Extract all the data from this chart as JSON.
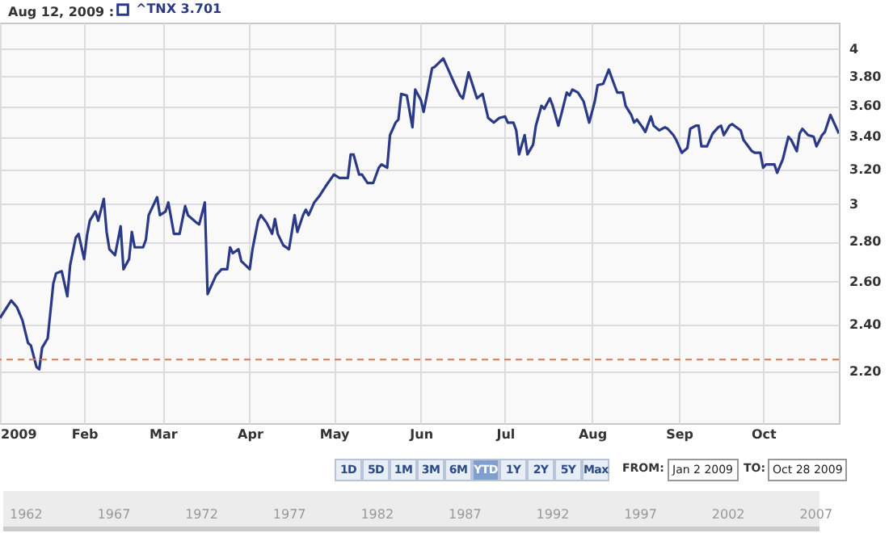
{
  "chart_data": {
    "type": "line",
    "title": "Aug 12, 2009 :",
    "x": [
      "2009-01-02",
      "2009-01-06",
      "2009-01-08",
      "2009-01-10",
      "2009-01-12",
      "2009-01-13",
      "2009-01-15",
      "2009-01-16",
      "2009-01-17",
      "2009-01-19",
      "2009-01-21",
      "2009-01-22",
      "2009-01-24",
      "2009-01-26",
      "2009-01-27",
      "2009-01-29",
      "2009-01-30",
      "2009-02-01",
      "2009-02-02",
      "2009-02-03",
      "2009-02-05",
      "2009-02-06",
      "2009-02-08",
      "2009-02-09",
      "2009-02-10",
      "2009-02-12",
      "2009-02-14",
      "2009-02-15",
      "2009-02-17",
      "2009-02-18",
      "2009-02-19",
      "2009-02-22",
      "2009-02-23",
      "2009-02-24",
      "2009-02-27",
      "2009-02-28",
      "2009-03-02",
      "2009-03-03",
      "2009-03-05",
      "2009-03-07",
      "2009-03-09",
      "2009-03-10",
      "2009-03-13",
      "2009-03-14",
      "2009-03-16",
      "2009-03-17",
      "2009-03-20",
      "2009-03-22",
      "2009-03-24",
      "2009-03-25",
      "2009-03-26",
      "2009-03-28",
      "2009-03-29",
      "2009-04-01",
      "2009-04-02",
      "2009-04-04",
      "2009-04-05",
      "2009-04-07",
      "2009-04-09",
      "2009-04-10",
      "2009-04-11",
      "2009-04-13",
      "2009-04-15",
      "2009-04-17",
      "2009-04-18",
      "2009-04-20",
      "2009-04-21",
      "2009-04-22",
      "2009-04-24",
      "2009-04-26",
      "2009-04-28",
      "2009-05-01",
      "2009-05-03",
      "2009-05-06",
      "2009-05-07",
      "2009-05-08",
      "2009-05-10",
      "2009-05-11",
      "2009-05-13",
      "2009-05-15",
      "2009-05-17",
      "2009-05-18",
      "2009-05-20",
      "2009-05-21",
      "2009-05-23",
      "2009-05-24",
      "2009-05-25",
      "2009-05-27",
      "2009-05-29",
      "2009-05-30",
      "2009-06-01",
      "2009-06-02",
      "2009-06-05",
      "2009-06-06",
      "2009-06-09",
      "2009-06-11",
      "2009-06-13",
      "2009-06-15",
      "2009-06-16",
      "2009-06-18",
      "2009-06-19",
      "2009-06-21",
      "2009-06-23",
      "2009-06-25",
      "2009-06-27",
      "2009-06-29",
      "2009-07-01",
      "2009-07-02",
      "2009-07-04",
      "2009-07-05",
      "2009-07-06",
      "2009-07-08",
      "2009-07-09",
      "2009-07-11",
      "2009-07-12",
      "2009-07-14",
      "2009-07-15",
      "2009-07-17",
      "2009-07-18",
      "2009-07-20",
      "2009-07-21",
      "2009-07-23",
      "2009-07-24",
      "2009-07-25",
      "2009-07-27",
      "2009-07-29",
      "2009-07-31",
      "2009-08-02",
      "2009-08-03",
      "2009-08-05",
      "2009-08-07",
      "2009-08-09",
      "2009-08-10",
      "2009-08-12",
      "2009-08-13",
      "2009-08-15",
      "2009-08-16",
      "2009-08-17",
      "2009-08-19",
      "2009-08-20",
      "2009-08-22",
      "2009-08-23",
      "2009-08-25",
      "2009-08-27",
      "2009-08-28",
      "2009-08-30",
      "2009-08-31",
      "2009-09-02",
      "2009-09-04",
      "2009-09-05",
      "2009-09-07",
      "2009-09-08",
      "2009-09-09",
      "2009-09-11",
      "2009-09-13",
      "2009-09-15",
      "2009-09-16",
      "2009-09-17",
      "2009-09-19",
      "2009-09-20",
      "2009-09-23",
      "2009-09-24",
      "2009-09-27",
      "2009-09-28",
      "2009-09-30",
      "2009-10-01",
      "2009-10-02",
      "2009-10-05",
      "2009-10-06",
      "2009-10-08",
      "2009-10-10",
      "2009-10-11",
      "2009-10-13",
      "2009-10-14",
      "2009-10-15",
      "2009-10-17",
      "2009-10-19",
      "2009-10-20",
      "2009-10-22",
      "2009-10-23",
      "2009-10-25",
      "2009-10-27",
      "2009-10-28"
    ],
    "series": [
      {
        "name": "^TNX 3.701",
        "color": "#2b3a86",
        "values": [
          2.43,
          2.51,
          2.48,
          2.42,
          2.32,
          2.31,
          2.22,
          2.21,
          2.3,
          2.34,
          2.59,
          2.64,
          2.65,
          2.53,
          2.68,
          2.82,
          2.84,
          2.71,
          2.83,
          2.91,
          2.96,
          2.91,
          3.03,
          2.85,
          2.76,
          2.73,
          2.88,
          2.66,
          2.71,
          2.85,
          2.77,
          2.77,
          2.81,
          2.94,
          3.04,
          2.94,
          2.96,
          3.01,
          2.84,
          2.84,
          2.99,
          2.94,
          2.9,
          2.89,
          3.01,
          2.54,
          2.63,
          2.66,
          2.66,
          2.77,
          2.74,
          2.76,
          2.7,
          2.66,
          2.76,
          2.91,
          2.94,
          2.9,
          2.84,
          2.92,
          2.84,
          2.78,
          2.76,
          2.94,
          2.85,
          2.94,
          2.97,
          2.94,
          3.01,
          3.05,
          3.1,
          3.17,
          3.15,
          3.15,
          3.29,
          3.29,
          3.17,
          3.17,
          3.12,
          3.12,
          3.21,
          3.23,
          3.21,
          3.41,
          3.49,
          3.51,
          3.68,
          3.67,
          3.46,
          3.71,
          3.64,
          3.56,
          3.86,
          3.87,
          3.93,
          3.84,
          3.75,
          3.67,
          3.65,
          3.83,
          3.77,
          3.65,
          3.68,
          3.52,
          3.49,
          3.52,
          3.53,
          3.49,
          3.49,
          3.44,
          3.29,
          3.41,
          3.29,
          3.35,
          3.47,
          3.6,
          3.58,
          3.65,
          3.6,
          3.47,
          3.54,
          3.69,
          3.67,
          3.71,
          3.69,
          3.63,
          3.49,
          3.63,
          3.74,
          3.75,
          3.85,
          3.74,
          3.69,
          3.69,
          3.6,
          3.54,
          3.49,
          3.51,
          3.46,
          3.43,
          3.53,
          3.47,
          3.44,
          3.46,
          3.45,
          3.41,
          3.38,
          3.3,
          3.33,
          3.45,
          3.47,
          3.47,
          3.34,
          3.34,
          3.42,
          3.46,
          3.47,
          3.41,
          3.47,
          3.48,
          3.44,
          3.38,
          3.31,
          3.3,
          3.3,
          3.21,
          3.23,
          3.23,
          3.18,
          3.26,
          3.4,
          3.38,
          3.31,
          3.42,
          3.45,
          3.41,
          3.4,
          3.34,
          3.41,
          3.43,
          3.54,
          3.46,
          3.42
        ]
      }
    ],
    "xlim": [
      "2009-01-02",
      "2009-10-28"
    ],
    "xticks": [
      {
        "value": "2009-01-02",
        "label": "2009"
      },
      {
        "value": "2009-02-01",
        "label": "Feb"
      },
      {
        "value": "2009-03-01",
        "label": "Mar"
      },
      {
        "value": "2009-04-01",
        "label": "Apr"
      },
      {
        "value": "2009-05-01",
        "label": "May"
      },
      {
        "value": "2009-06-01",
        "label": "Jun"
      },
      {
        "value": "2009-07-01",
        "label": "Jul"
      },
      {
        "value": "2009-08-01",
        "label": "Aug"
      },
      {
        "value": "2009-09-01",
        "label": "Sep"
      },
      {
        "value": "2009-10-01",
        "label": "Oct"
      }
    ],
    "ylim": [
      2,
      4.2
    ],
    "log": true,
    "yticks": [
      {
        "value": 2.2,
        "label": "2.20"
      },
      {
        "value": 2.4,
        "label": "2.40"
      },
      {
        "value": 2.6,
        "label": "2.60"
      },
      {
        "value": 2.8,
        "label": "2.80"
      },
      3,
      {
        "value": 3.2,
        "label": "3.20"
      },
      {
        "value": 3.4,
        "label": "3.40"
      },
      {
        "value": 3.6,
        "label": "3.60"
      },
      {
        "value": 3.8,
        "label": "3.80"
      },
      4
    ],
    "ref_lines": [
      {
        "axis": "y",
        "value": 2.25,
        "color": "#e07848",
        "line_style": "dashed"
      }
    ],
    "grid": true,
    "legend": "top left",
    "marker": "none",
    "line_style": "solid",
    "annotations": [
      "1D",
      "5D",
      "1M",
      "3M",
      "6M",
      "YTD",
      "1Y",
      "2Y",
      "5Y",
      "Max",
      "FROM:",
      "Jan 2 2009",
      "TO:",
      "Oct 28 2009",
      "1962",
      "1967",
      "1972",
      "1977",
      "1982",
      "1987",
      "1992",
      "1997",
      "2002",
      "2007"
    ]
  }
}
